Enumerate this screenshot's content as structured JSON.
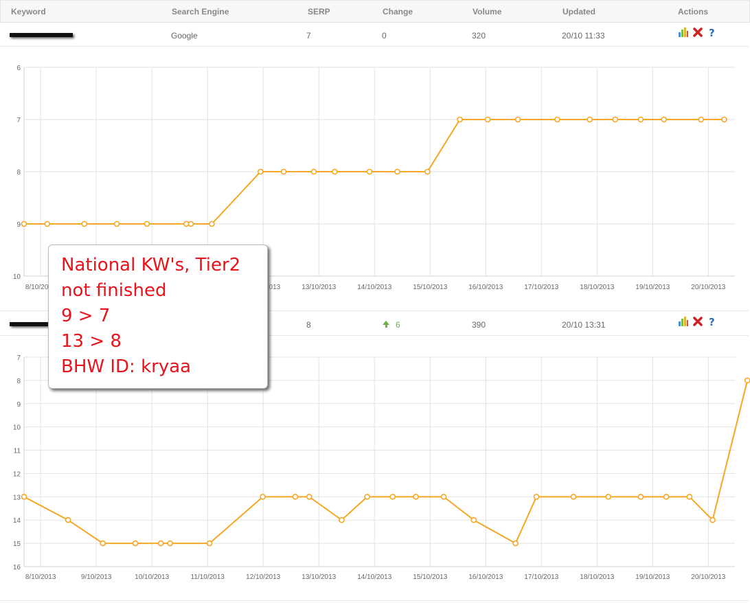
{
  "table": {
    "headers": {
      "keyword": "Keyword",
      "engine": "Search Engine",
      "serp": "SERP",
      "change": "Change",
      "volume": "Volume",
      "updated": "Updated",
      "actions": "Actions"
    },
    "rows": [
      {
        "engine": "Google",
        "serp": "7",
        "change": "0",
        "volume": "320",
        "updated": "20/10 11:33",
        "change_direction": "none"
      },
      {
        "engine": "",
        "serp": "8",
        "change": "6",
        "volume": "390",
        "updated": "20/10 13:31",
        "change_direction": "up"
      }
    ],
    "action_icons": [
      "bar-chart-icon",
      "delete-icon",
      "help-icon"
    ]
  },
  "note": {
    "lines": [
      "National KW's, Tier2",
      "not finished",
      "9 > 7",
      "13 > 8",
      "BHW ID: kryaa"
    ]
  },
  "colors": {
    "series": "#f5a623",
    "grid": "#e2e2e2",
    "change_up": "#6cb33f",
    "note_text": "#e8131b",
    "delete": "#cc2222",
    "help": "#2a6ebb"
  },
  "chart_data": [
    {
      "type": "line",
      "title": "",
      "xlabel": "",
      "ylabel": "",
      "y_reversed": true,
      "ylim": [
        6,
        10
      ],
      "yticks": [
        6,
        7,
        8,
        9,
        10
      ],
      "xlim": [
        "2013-10-08",
        "2013-10-20"
      ],
      "xticks": [
        "8/10/2013",
        "9/10/2013",
        "10/10/2013",
        "11/10/2013",
        "12/10/2013",
        "13/10/2013",
        "14/10/2013",
        "15/10/2013",
        "16/10/2013",
        "17/10/2013",
        "18/10/2013",
        "19/10/2013",
        "20/10/2013"
      ],
      "x": [
        "2013-10-08 00:00",
        "2013-10-08 10:00",
        "2013-10-09 02:00",
        "2013-10-09 16:00",
        "2013-10-10 05:00",
        "2013-10-10 22:00",
        "2013-10-11 00:00",
        "2013-10-11 09:00",
        "2013-10-12 06:00",
        "2013-10-12 16:00",
        "2013-10-13 05:00",
        "2013-10-13 14:00",
        "2013-10-14 05:00",
        "2013-10-14 17:00",
        "2013-10-15 06:00",
        "2013-10-15 20:00",
        "2013-10-16 08:00",
        "2013-10-16 21:00",
        "2013-10-17 14:00",
        "2013-10-18 04:00",
        "2013-10-18 15:00",
        "2013-10-19 02:00",
        "2013-10-19 12:00",
        "2013-10-20 04:00",
        "2013-10-20 14:00"
      ],
      "y": [
        9,
        9,
        9,
        9,
        9,
        9,
        9,
        9,
        8,
        8,
        8,
        8,
        8,
        8,
        8,
        7,
        7,
        7,
        7,
        7,
        7,
        7,
        7,
        7,
        7
      ]
    },
    {
      "type": "line",
      "title": "",
      "xlabel": "",
      "ylabel": "",
      "y_reversed": true,
      "ylim": [
        7,
        16
      ],
      "yticks": [
        7,
        8,
        9,
        10,
        11,
        12,
        13,
        14,
        15,
        16
      ],
      "xlim": [
        "2013-10-08",
        "2013-10-20"
      ],
      "xticks": [
        "8/10/2013",
        "9/10/2013",
        "10/10/2013",
        "11/10/2013",
        "12/10/2013",
        "13/10/2013",
        "14/10/2013",
        "15/10/2013",
        "16/10/2013",
        "17/10/2013",
        "18/10/2013",
        "19/10/2013",
        "20/10/2013"
      ],
      "x": [
        "2013-10-08 00:00",
        "2013-10-08 19:00",
        "2013-10-09 10:00",
        "2013-10-10 00:00",
        "2013-10-10 11:00",
        "2013-10-10 15:00",
        "2013-10-11 08:00",
        "2013-10-12 07:00",
        "2013-10-12 21:00",
        "2013-10-13 03:00",
        "2013-10-13 17:00",
        "2013-10-14 04:00",
        "2013-10-14 15:00",
        "2013-10-15 01:00",
        "2013-10-15 13:00",
        "2013-10-16 02:00",
        "2013-10-16 20:00",
        "2013-10-17 05:00",
        "2013-10-17 21:00",
        "2013-10-18 12:00",
        "2013-10-19 02:00",
        "2013-10-19 13:00",
        "2013-10-19 23:00",
        "2013-10-20 09:00",
        "2013-10-21 00:00"
      ],
      "y": [
        13,
        14,
        15,
        15,
        15,
        15,
        15,
        13,
        13,
        13,
        14,
        13,
        13,
        13,
        13,
        14,
        15,
        13,
        13,
        13,
        13,
        13,
        13,
        14,
        8
      ]
    }
  ]
}
